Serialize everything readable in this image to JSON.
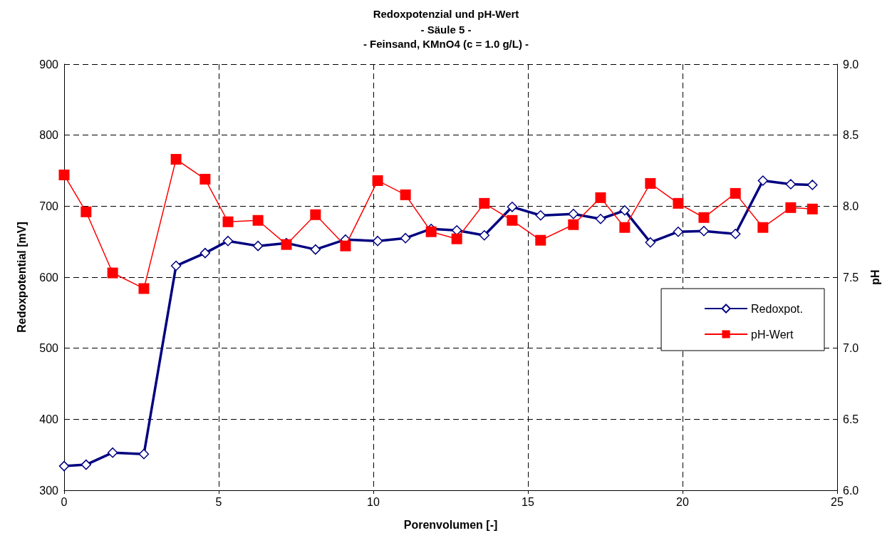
{
  "chart_data": {
    "type": "line",
    "title": "Redoxpotenzial und pH-Wert",
    "subtitle": "- Säule 5 -\n- Feinsand, KMnO4 (c = 1.0 g/L) -",
    "xlabel": "Porenvolumen [-]",
    "ylabel": "Redoxpotential [mV]",
    "y2label": "pH",
    "x": [
      0,
      0.71,
      1.57,
      2.58,
      3.62,
      4.56,
      5.3,
      6.27,
      7.19,
      8.13,
      9.1,
      10.14,
      11.04,
      11.87,
      12.7,
      13.59,
      14.49,
      15.41,
      16.47,
      17.35,
      18.13,
      18.96,
      19.86,
      20.69,
      21.71,
      22.6,
      23.5,
      24.2
    ],
    "series": [
      {
        "name": "Redoxpot.",
        "color": "#000080",
        "marker": "diamond",
        "values": [
          334,
          336,
          353,
          351,
          616,
          634,
          651,
          644,
          648,
          639,
          653,
          651,
          655,
          668,
          666,
          659,
          699,
          687,
          689,
          682,
          694,
          649,
          664,
          665,
          661,
          736,
          731,
          730
        ]
      },
      {
        "name": "pH-Wert",
        "color": "#ff0000",
        "marker": "square",
        "axis": "y2",
        "values": [
          8.22,
          7.96,
          7.53,
          7.42,
          8.33,
          8.19,
          7.89,
          7.9,
          7.73,
          7.94,
          7.72,
          8.18,
          8.08,
          7.82,
          7.77,
          8.02,
          7.9,
          7.76,
          7.87,
          8.06,
          7.85,
          8.16,
          8.02,
          7.92,
          8.09,
          7.85,
          7.99,
          7.98
        ]
      }
    ],
    "xlim": [
      0,
      25
    ],
    "xticks": [
      0,
      5,
      10,
      15,
      20,
      25
    ],
    "ylim": [
      300,
      900
    ],
    "yticks": [
      300,
      400,
      500,
      600,
      700,
      800,
      900
    ],
    "y2lim": [
      6,
      9
    ],
    "y2ticks": [
      {
        "value": 6,
        "label": "6.0"
      },
      {
        "value": 6.5,
        "label": "6.5"
      },
      {
        "value": 7,
        "label": "7.0"
      },
      {
        "value": 7.5,
        "label": "7.5"
      },
      {
        "value": 8,
        "label": "8.0"
      },
      {
        "value": 8.5,
        "label": "8.5"
      },
      {
        "value": 9,
        "label": "9.0"
      }
    ],
    "grid": true,
    "legend": "right"
  }
}
